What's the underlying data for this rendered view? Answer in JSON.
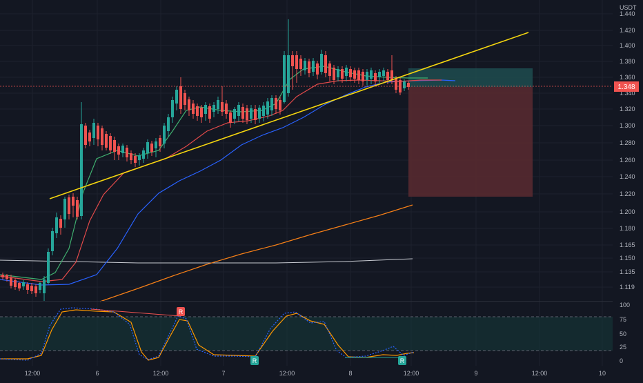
{
  "header": {
    "currency": "USDT"
  },
  "price_axis": {
    "labels": [
      "1.440",
      "1.420",
      "1.400",
      "1.380",
      "1.360",
      "1.340",
      "1.320",
      "1.300",
      "1.280",
      "1.260",
      "1.240",
      "1.220",
      "1.200",
      "1.180",
      "1.165",
      "1.150",
      "1.135",
      "1.119"
    ],
    "current_price": "1.348"
  },
  "oscillator_axis": {
    "labels": [
      "100",
      "75",
      "50",
      "25",
      "0"
    ]
  },
  "time_axis": {
    "labels": [
      "12:00",
      "6",
      "12:00",
      "7",
      "12:00",
      "8",
      "12:00",
      "9",
      "12:00",
      "10"
    ]
  },
  "signals": [
    {
      "label": "R",
      "kind": "bearish"
    },
    {
      "label": "R",
      "kind": "bullish"
    },
    {
      "label": "R",
      "kind": "bullish"
    }
  ],
  "colors": {
    "background": "#131722",
    "grid": "#1e222d",
    "up": "#26a69a",
    "down": "#ef5350",
    "trendline": "#f5d60f",
    "ema_green": "#3fae6f",
    "ema_red": "#e24a4a",
    "ema_blue": "#2962ff",
    "ema_orange": "#f57f17",
    "ema_white": "#c9ccd3",
    "stoch_k": "#2962ff",
    "stoch_d": "#ff9800"
  },
  "chart_data": {
    "type": "candlestick",
    "ylim": [
      1.11,
      1.445
    ],
    "oscillator_ylim": [
      0,
      100
    ],
    "oscillator_bands": [
      20,
      80
    ]
  }
}
